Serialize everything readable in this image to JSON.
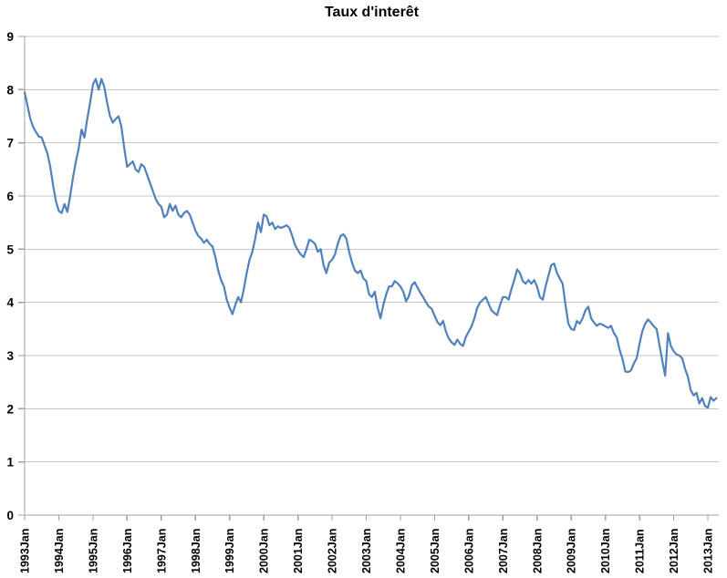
{
  "chart": {
    "title": "Taux d'interêt"
  },
  "chart_data": {
    "type": "line",
    "title": "Taux d'interêt",
    "xlabel": "",
    "ylabel": "",
    "frequency": "monthly",
    "x_start": "1993Jan",
    "x_end": "2013Apr",
    "ylim": [
      0,
      9
    ],
    "grid": true,
    "legend": "none",
    "line_color": "#4F81BD",
    "gridline_color": "#C6C6C6",
    "axis_color": "#A0A0A0",
    "y_tick_labels": [
      "0",
      "1",
      "2",
      "3",
      "4",
      "5",
      "6",
      "7",
      "8",
      "9"
    ],
    "x_tick_labels": [
      "1993Jan",
      "1994Jan",
      "1995Jan",
      "1996Jan",
      "1997Jan",
      "1998Jan",
      "1999Jan",
      "2000Jan",
      "2001Jan",
      "2002Jan",
      "2003Jan",
      "2004Jan",
      "2005Jan",
      "2006Jan",
      "2007Jan",
      "2008Jan",
      "2009Jan",
      "2010Jan",
      "2011Jan",
      "2012Jan",
      "2013Jan"
    ],
    "series": [
      {
        "name": "Taux d'interêt",
        "values": [
          7.95,
          7.7,
          7.45,
          7.3,
          7.2,
          7.12,
          7.1,
          6.95,
          6.8,
          6.55,
          6.2,
          5.9,
          5.72,
          5.68,
          5.85,
          5.7,
          6.0,
          6.35,
          6.65,
          6.9,
          7.25,
          7.1,
          7.45,
          7.75,
          8.1,
          8.2,
          8.0,
          8.2,
          8.05,
          7.75,
          7.5,
          7.38,
          7.45,
          7.5,
          7.3,
          6.9,
          6.55,
          6.6,
          6.65,
          6.5,
          6.45,
          6.6,
          6.55,
          6.4,
          6.25,
          6.1,
          5.95,
          5.85,
          5.8,
          5.6,
          5.65,
          5.85,
          5.72,
          5.82,
          5.65,
          5.6,
          5.68,
          5.72,
          5.65,
          5.5,
          5.35,
          5.25,
          5.2,
          5.12,
          5.18,
          5.1,
          5.05,
          4.85,
          4.6,
          4.42,
          4.3,
          4.05,
          3.9,
          3.78,
          3.95,
          4.1,
          4.0,
          4.25,
          4.55,
          4.8,
          4.95,
          5.2,
          5.5,
          5.32,
          5.65,
          5.62,
          5.45,
          5.5,
          5.38,
          5.43,
          5.4,
          5.42,
          5.45,
          5.4,
          5.25,
          5.08,
          4.98,
          4.9,
          4.85,
          5.0,
          5.18,
          5.15,
          5.1,
          4.95,
          5.0,
          4.7,
          4.55,
          4.75,
          4.8,
          4.9,
          5.1,
          5.25,
          5.28,
          5.2,
          4.95,
          4.75,
          4.6,
          4.55,
          4.6,
          4.45,
          4.4,
          4.15,
          4.1,
          4.2,
          3.9,
          3.7,
          3.95,
          4.15,
          4.3,
          4.3,
          4.4,
          4.36,
          4.3,
          4.2,
          4.02,
          4.12,
          4.32,
          4.38,
          4.28,
          4.18,
          4.1,
          4.0,
          3.92,
          3.88,
          3.75,
          3.63,
          3.57,
          3.65,
          3.45,
          3.32,
          3.25,
          3.2,
          3.3,
          3.22,
          3.18,
          3.35,
          3.45,
          3.55,
          3.7,
          3.9,
          4.0,
          4.05,
          4.1,
          3.97,
          3.85,
          3.8,
          3.76,
          3.95,
          4.1,
          4.1,
          4.05,
          4.25,
          4.42,
          4.62,
          4.55,
          4.4,
          4.35,
          4.42,
          4.35,
          4.42,
          4.3,
          4.1,
          4.05,
          4.3,
          4.5,
          4.7,
          4.73,
          4.55,
          4.45,
          4.35,
          3.95,
          3.6,
          3.5,
          3.48,
          3.65,
          3.6,
          3.7,
          3.85,
          3.92,
          3.7,
          3.62,
          3.56,
          3.6,
          3.58,
          3.55,
          3.52,
          3.56,
          3.42,
          3.34,
          3.11,
          2.94,
          2.7,
          2.69,
          2.72,
          2.85,
          2.95,
          3.22,
          3.46,
          3.6,
          3.68,
          3.62,
          3.55,
          3.5,
          3.2,
          2.9,
          2.62,
          3.42,
          3.18,
          3.08,
          3.02,
          3.0,
          2.95,
          2.75,
          2.6,
          2.35,
          2.25,
          2.3,
          2.1,
          2.2,
          2.05,
          2.02,
          2.22,
          2.15,
          2.2
        ]
      }
    ]
  }
}
